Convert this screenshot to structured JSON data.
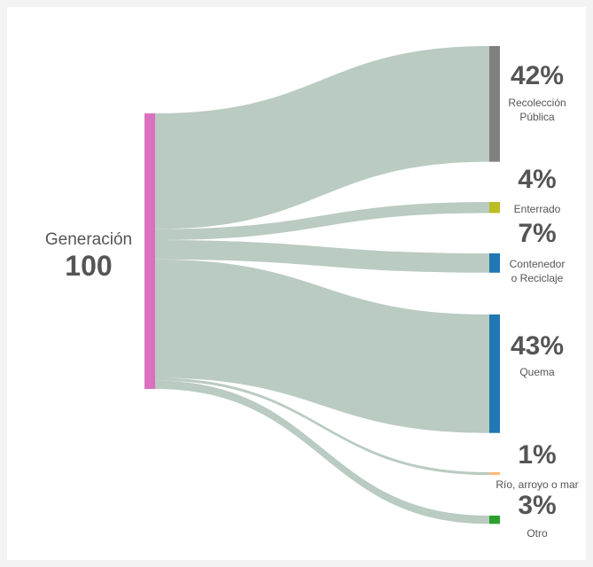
{
  "chart_data": {
    "type": "sankey",
    "source": {
      "name": "Generación",
      "value": 100,
      "color": "#d970c0"
    },
    "link_color": "#bacbc1",
    "nodes": [
      [
        "Recolección",
        "Pública"
      ],
      [
        "Enterrado"
      ],
      [
        "Contenedor",
        "o Reciclaje"
      ],
      [
        "Quema"
      ],
      [
        "Río, arroyo o mar"
      ],
      [
        "Otro"
      ]
    ],
    "values": [
      42,
      4,
      7,
      43,
      1,
      3
    ],
    "value_labels": [
      "42%",
      "4%",
      "7%",
      "43%",
      "1%",
      "3%"
    ],
    "colors": [
      "#808080",
      "#bcbd22",
      "#1f77b4",
      "#1f77b4",
      "#ffbb78",
      "#2ca02c"
    ]
  }
}
